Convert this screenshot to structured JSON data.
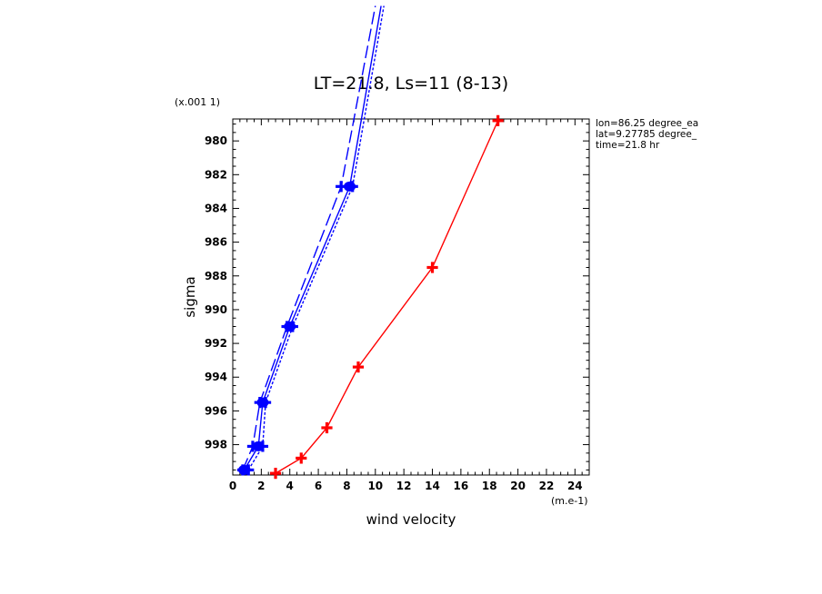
{
  "chart_data": {
    "type": "line",
    "title": "LT=21.8, Ls=11 (8-13)",
    "xlabel": "wind velocity",
    "ylabel": "sigma",
    "x_units": "(m.e-1)",
    "y_units": "(x.001 1)",
    "xlim": [
      0,
      25
    ],
    "ylim": [
      999.8,
      978.7
    ],
    "x_ticks": [
      "0",
      "2",
      "4",
      "6",
      "8",
      "10",
      "12",
      "14",
      "16",
      "18",
      "20",
      "22",
      "24"
    ],
    "y_ticks": [
      "980",
      "982",
      "984",
      "986",
      "988",
      "990",
      "992",
      "994",
      "996",
      "998"
    ],
    "annotations": [
      "lon=86.25 degree_ea",
      "lat=9.27785 degree_",
      "time=21.8 hr"
    ],
    "grid": false,
    "series": [
      {
        "color": "#ff0000",
        "style": "solid",
        "marker": "plus",
        "points": [
          [
            3.0,
            999.7
          ],
          [
            4.8,
            998.8
          ],
          [
            6.6,
            997.0
          ],
          [
            8.8,
            993.4
          ],
          [
            14.0,
            987.5
          ],
          [
            18.6,
            978.8
          ]
        ]
      },
      {
        "color": "#0000ff",
        "style": "solid",
        "marker": "circle",
        "points": [
          [
            0.8,
            999.5
          ],
          [
            1.8,
            998.1
          ],
          [
            2.1,
            995.5
          ],
          [
            4.0,
            991.0
          ],
          [
            8.2,
            982.7
          ],
          [
            10.4,
            972.0
          ]
        ]
      },
      {
        "color": "#0000ff",
        "style": "dashed",
        "marker": "plus",
        "points": [
          [
            0.7,
            999.5
          ],
          [
            1.4,
            998.1
          ],
          [
            1.9,
            995.5
          ],
          [
            3.8,
            991.0
          ],
          [
            7.6,
            982.7
          ],
          [
            10.0,
            972.0
          ]
        ]
      },
      {
        "color": "#0000ff",
        "style": "dotted",
        "marker": "plus",
        "points": [
          [
            1.1,
            999.5
          ],
          [
            2.1,
            998.1
          ],
          [
            2.3,
            995.5
          ],
          [
            4.2,
            991.0
          ],
          [
            8.4,
            982.7
          ],
          [
            10.6,
            972.0
          ]
        ]
      }
    ]
  }
}
